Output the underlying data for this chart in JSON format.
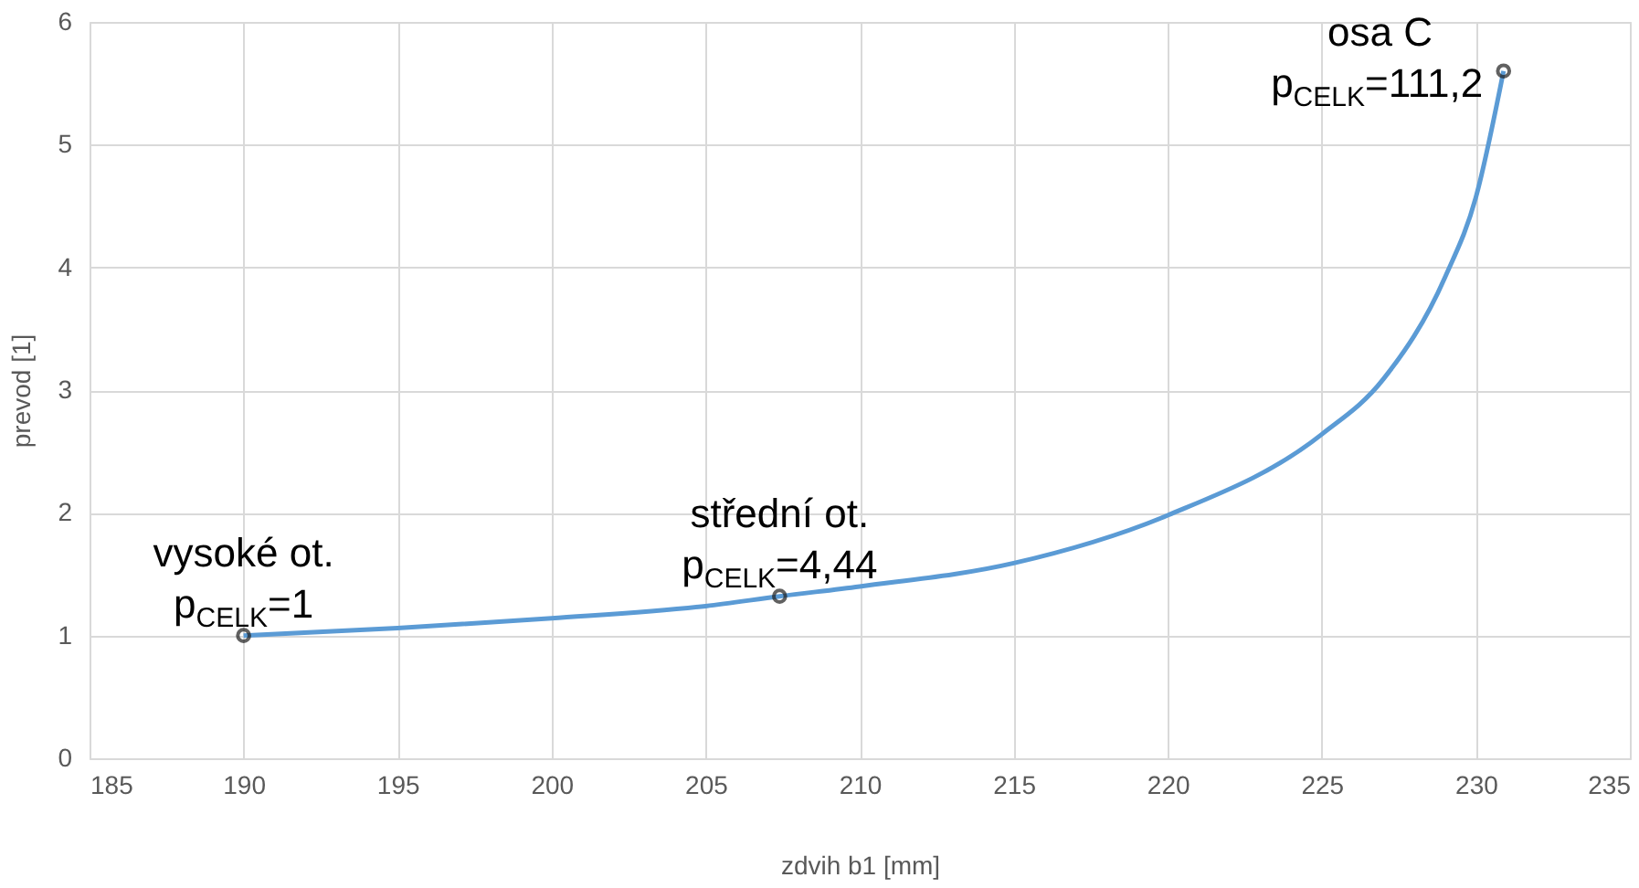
{
  "chart_data": {
    "type": "line",
    "xlabel": "zdvih b1 [mm]",
    "ylabel": "prevod [1]",
    "xlim": [
      185,
      235
    ],
    "xticks": [
      185,
      190,
      195,
      200,
      205,
      210,
      215,
      220,
      225,
      230,
      235
    ],
    "ylim": [
      0,
      6
    ],
    "yticks": [
      0,
      1,
      2,
      3,
      4,
      5,
      6
    ],
    "grid": true,
    "series": [
      {
        "type": "line",
        "color": "#5b9bd5",
        "marker": "none",
        "line_style": "solid",
        "x": [
          190,
          195,
          200,
          205,
          207.4,
          210,
          215,
          220,
          225,
          227,
          229,
          230,
          230.9
        ],
        "values": [
          1.0,
          1.06,
          1.14,
          1.24,
          1.32,
          1.4,
          1.59,
          1.98,
          2.64,
          3.09,
          3.92,
          4.57,
          5.6
        ]
      },
      {
        "type": "scatter",
        "color": "#1f1f1f",
        "marker": "circle",
        "x": [
          190,
          207.4,
          230.9
        ],
        "values": [
          1.0,
          1.32,
          5.6
        ]
      }
    ],
    "annotations": [
      {
        "text": "vysoké ot.\np$_{CELK}$=1",
        "x": 190,
        "y": 1.0
      },
      {
        "text": "střední ot.\np$_{CELK}$=4,44",
        "x": 207.4,
        "y": 1.32
      },
      {
        "text": "osa C\np$_{CELK}$=111,2",
        "x": 230.9,
        "y": 5.6
      }
    ]
  }
}
